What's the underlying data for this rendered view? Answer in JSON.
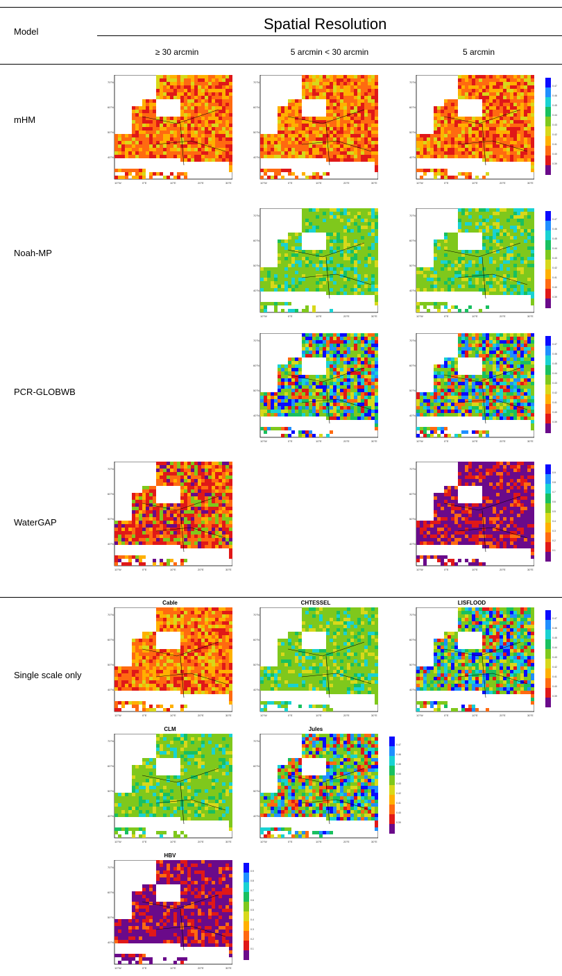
{
  "header": {
    "model_label": "Model",
    "spatial_title": "Spatial Resolution",
    "columns": [
      "≥ 30 arcmin",
      "5 arcmin < 30 arcmin",
      "5 arcmin"
    ]
  },
  "rows": [
    {
      "label": "mHM"
    },
    {
      "label": "Noah-MP"
    },
    {
      "label": "PCR-GLOBWB"
    },
    {
      "label": "WaterGAP"
    },
    {
      "label": "Single scale only"
    }
  ],
  "single_scale_maps": [
    "Cable",
    "CHTESSEL",
    "LISFLOOD",
    "CLM",
    "Jules",
    "HBV"
  ],
  "lat_ticks": [
    "70°N",
    "60°N",
    "50°N",
    "40°N"
  ],
  "lon_ticks": [
    "10°W",
    "0°E",
    "10°E",
    "20°E",
    "30°E"
  ],
  "legend_small": [
    "0.47",
    "0.46",
    "0.45",
    "0.44",
    "0.43",
    "0.42",
    "0.41",
    "0.40",
    "0.39"
  ],
  "legend_large": [
    "0.9",
    "0.8",
    "0.7",
    "0.6",
    "0.5",
    "0.4",
    "0.3",
    "0.2",
    "0.1"
  ],
  "palette": [
    "#0a0aff",
    "#1f8fff",
    "#19d2d2",
    "#18c060",
    "#7fc81c",
    "#d8d81a",
    "#ffb000",
    "#ff6a10",
    "#e01818",
    "#6a0a8a"
  ]
}
